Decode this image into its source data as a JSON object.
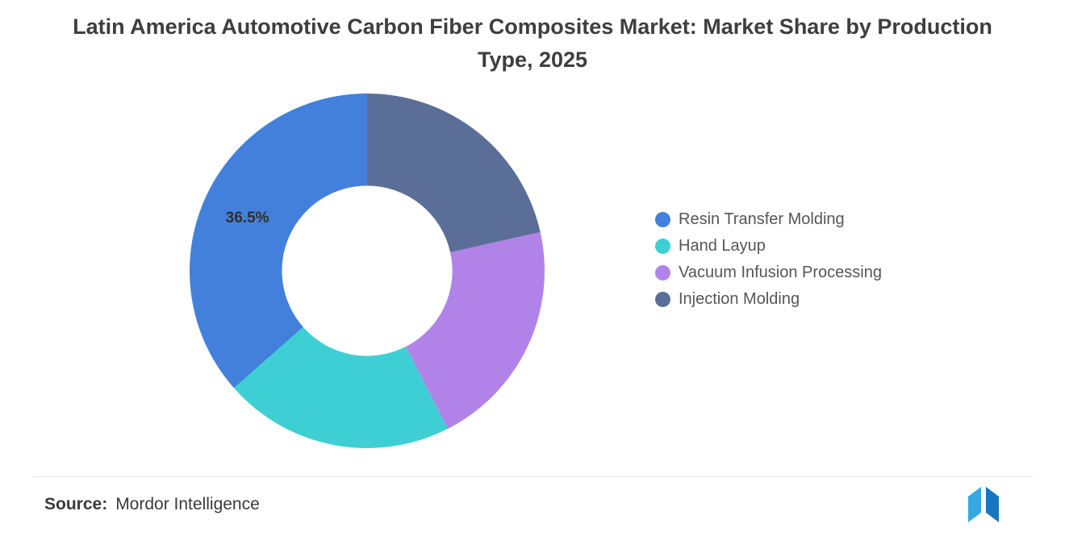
{
  "title": "Latin America Automotive Carbon Fiber Composites Market: Market Share by Production Type, 2025",
  "source": {
    "label": "Source:",
    "value": "Mordor Intelligence"
  },
  "brand": {
    "logo_light_color": "#36A9E1",
    "logo_dark_color": "#1B75BC"
  },
  "chart_data": {
    "type": "pie",
    "subtype": "donut",
    "title": "Latin America Automotive Carbon Fiber Composites Market: Market Share by Production Type, 2025",
    "inner_radius_ratio": 0.48,
    "start_angle_deg": 0,
    "direction": "counterclockwise",
    "legend_position": "right",
    "grid": false,
    "series": [
      {
        "name": "Resin Transfer Molding",
        "value": 36.5,
        "color": "#4280DB",
        "label": "36.5%"
      },
      {
        "name": "Hand Layup",
        "value": 21.0,
        "color": "#3ECFD4"
      },
      {
        "name": "Vacuum Infusion Processing",
        "value": 21.0,
        "color": "#B183E8"
      },
      {
        "name": "Injection Molding",
        "value": 21.5,
        "color": "#5B6E97"
      }
    ]
  }
}
